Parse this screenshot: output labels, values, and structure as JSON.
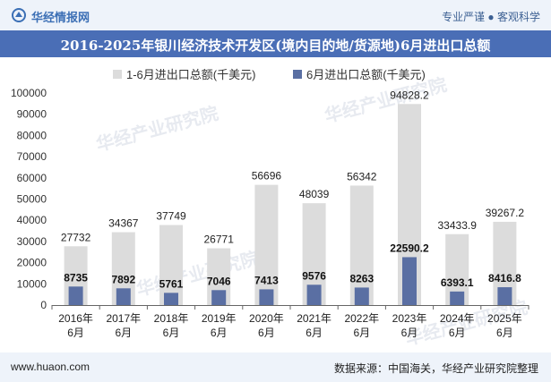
{
  "header": {
    "brand": "华经情报网",
    "tagline": "专业严谨 ● 客观科学"
  },
  "footer": {
    "website": "www.huaon.com",
    "source": "数据来源：中国海关，华经产业研究院整理"
  },
  "watermark": "华经产业研究院",
  "colors": {
    "series1": "#dcdcdc",
    "series2": "#5a6fa3",
    "title_bar": "#4a6eb6"
  },
  "chart_data": {
    "type": "bar",
    "title": "2016-2025年银川经济技术开发区(境内目的地/货源地)6月进出口总额",
    "categories": [
      "2016年\n6月",
      "2017年\n6月",
      "2018年\n6月",
      "2019年\n6月",
      "2020年\n6月",
      "2021年\n6月",
      "2022年\n6月",
      "2023年\n6月",
      "2024年\n6月",
      "2025年\n6月"
    ],
    "series": [
      {
        "name": "1-6月进出口总额(千美元)",
        "values": [
          27732,
          34367,
          37749,
          26771,
          56696,
          48039,
          56342,
          94828.2,
          33433.9,
          39267.2
        ],
        "labels": [
          "27732",
          "34367",
          "37749",
          "26771",
          "56696",
          "48039",
          "56342",
          "94828.2",
          "33433.9",
          "39267.2"
        ]
      },
      {
        "name": "6月进出口总额(千美元)",
        "values": [
          8735,
          7892,
          5761,
          7046,
          7413,
          9576,
          8263,
          22590.2,
          6393.1,
          8416.8
        ],
        "labels": [
          "8735",
          "7892",
          "5761",
          "7046",
          "7413",
          "9576",
          "8263",
          "22590.2",
          "6393.1",
          "8416.8"
        ]
      }
    ],
    "ylim": [
      0,
      100000
    ],
    "yticks": [
      0,
      10000,
      20000,
      30000,
      40000,
      50000,
      60000,
      70000,
      80000,
      90000,
      100000
    ],
    "legend": "top"
  }
}
